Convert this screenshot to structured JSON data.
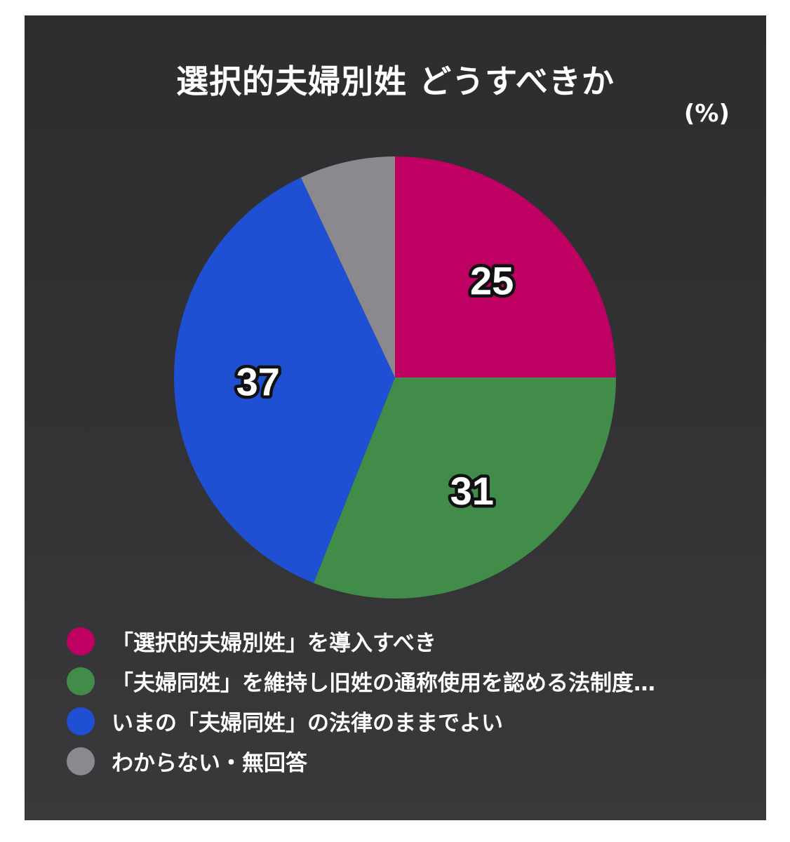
{
  "chart_data": {
    "type": "pie",
    "title": "選択的夫婦別姓 どうすべきか",
    "unit": "(%)",
    "slices": [
      {
        "label": "「選択的夫婦別姓」を導入すべき",
        "value": 25,
        "display": "25",
        "color": "#be0062"
      },
      {
        "label": "「夫婦同姓」を維持し旧姓の通称使用を認める法制度…",
        "value": 31,
        "display": "31",
        "color": "#428c4a"
      },
      {
        "label": "いまの「夫婦同姓」の法律のままでよい",
        "value": 37,
        "display": "37",
        "color": "#1f4fd2"
      },
      {
        "label": "わからない・無回答",
        "value": 7,
        "display": "",
        "color": "#8b898d"
      }
    ],
    "legend_position": "bottom-left",
    "start_angle_deg": 0,
    "direction": "clockwise"
  }
}
